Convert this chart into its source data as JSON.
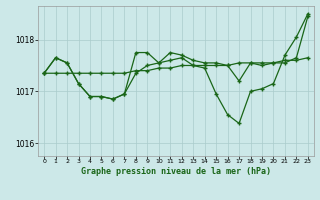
{
  "background_color": "#cce8e8",
  "plot_bg_color": "#cce8e8",
  "grid_color": "#aacccc",
  "line_color": "#1a6618",
  "ylim": [
    1015.75,
    1018.65
  ],
  "xlim": [
    -0.5,
    23.5
  ],
  "yticks": [
    1016,
    1017,
    1018
  ],
  "xticks": [
    0,
    1,
    2,
    3,
    4,
    5,
    6,
    7,
    8,
    9,
    10,
    11,
    12,
    13,
    14,
    15,
    16,
    17,
    18,
    19,
    20,
    21,
    22,
    23
  ],
  "xlabel": "Graphe pression niveau de la mer (hPa)",
  "line1_x": [
    0,
    1,
    2,
    3,
    4,
    5,
    6,
    7,
    8,
    9,
    10,
    11,
    12,
    13,
    14,
    15,
    16,
    17,
    18,
    19,
    20,
    21,
    22,
    23
  ],
  "line1_y": [
    1017.35,
    1017.35,
    1017.35,
    1017.35,
    1017.35,
    1017.35,
    1017.35,
    1017.35,
    1017.4,
    1017.4,
    1017.45,
    1017.45,
    1017.5,
    1017.5,
    1017.5,
    1017.5,
    1017.5,
    1017.55,
    1017.55,
    1017.55,
    1017.55,
    1017.6,
    1017.6,
    1017.65
  ],
  "line2_x": [
    0,
    1,
    2,
    3,
    4,
    5,
    6,
    7,
    8,
    9,
    10,
    11,
    12,
    13,
    14,
    15,
    16,
    17,
    18,
    19,
    20,
    21,
    22,
    23
  ],
  "line2_y": [
    1017.35,
    1017.65,
    1017.55,
    1017.15,
    1016.9,
    1016.9,
    1016.85,
    1016.95,
    1017.35,
    1017.5,
    1017.55,
    1017.6,
    1017.65,
    1017.5,
    1017.45,
    1016.95,
    1016.55,
    1016.38,
    1017.0,
    1017.05,
    1017.15,
    1017.7,
    1018.05,
    1018.5
  ],
  "line3_x": [
    0,
    1,
    2,
    3,
    4,
    5,
    6,
    7,
    8,
    9,
    10,
    11,
    12,
    13,
    14,
    15,
    16,
    17,
    18,
    19,
    20,
    21,
    22,
    23
  ],
  "line3_y": [
    1017.35,
    1017.65,
    1017.55,
    1017.15,
    1016.9,
    1016.9,
    1016.85,
    1016.95,
    1017.75,
    1017.75,
    1017.55,
    1017.75,
    1017.7,
    1017.6,
    1017.55,
    1017.55,
    1017.5,
    1017.2,
    1017.55,
    1017.5,
    1017.55,
    1017.55,
    1017.65,
    1018.45
  ]
}
